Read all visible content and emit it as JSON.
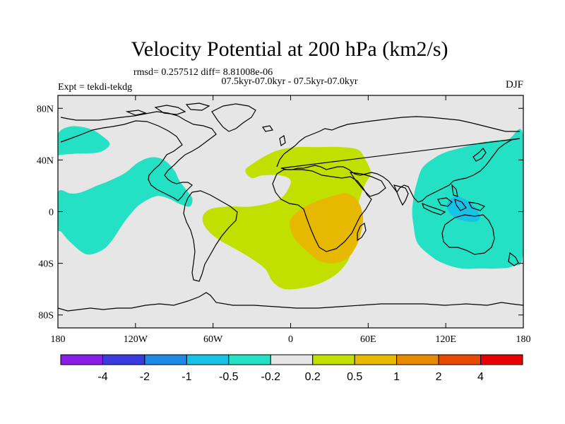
{
  "chart_data": {
    "type": "map-contour",
    "title": "Velocity Potential at 200 hPa (km2/s)",
    "subtitle_left": "rmsd= 0.257512 diff= 8.81008e-06",
    "subtitle_center": "07.5kyr-07.0kyr - 07.5kyr-07.0kyr",
    "expt_label": "Expt = tekdi-tekdg",
    "season_label": "DJF",
    "x_ticks": [
      {
        "value": -180,
        "label": "180"
      },
      {
        "value": -120,
        "label": "120W"
      },
      {
        "value": -60,
        "label": "60W"
      },
      {
        "value": 0,
        "label": "0"
      },
      {
        "value": 60,
        "label": "60E"
      },
      {
        "value": 120,
        "label": "120E"
      },
      {
        "value": 180,
        "label": "180"
      }
    ],
    "y_ticks": [
      {
        "value": 80,
        "label": "80N"
      },
      {
        "value": 40,
        "label": "40N"
      },
      {
        "value": 0,
        "label": "0"
      },
      {
        "value": -40,
        "label": "40S"
      },
      {
        "value": -80,
        "label": "80S"
      }
    ],
    "xlim": [
      -180,
      180
    ],
    "ylim": [
      -90,
      90
    ],
    "colorbar": {
      "colors": [
        "#8b1ee6",
        "#3a3adf",
        "#1f8ae6",
        "#18c2e6",
        "#24e0c4",
        "#e6e6e6",
        "#c2e000",
        "#e6b800",
        "#e68a00",
        "#e64a00",
        "#e60000"
      ],
      "labels": [
        "-4",
        "-2",
        "-1",
        "-0.5",
        "-0.2",
        "0.2",
        "0.5",
        "1",
        "2",
        "4"
      ]
    },
    "regions": [
      {
        "level": "-0.5 to -0.2",
        "color": "#24e0c4",
        "outline": [
          [
            -180,
            60
          ],
          [
            -170,
            66
          ],
          [
            -155,
            64
          ],
          [
            -145,
            58
          ],
          [
            -140,
            52
          ],
          [
            -148,
            46
          ],
          [
            -165,
            45
          ],
          [
            -178,
            44
          ],
          [
            -180,
            44
          ]
        ]
      },
      {
        "level": "-0.5 to -0.2",
        "color": "#24e0c4",
        "outline": [
          [
            -180,
            15
          ],
          [
            -170,
            14
          ],
          [
            -162,
            15
          ],
          [
            -150,
            20
          ],
          [
            -140,
            24
          ],
          [
            -128,
            30
          ],
          [
            -118,
            38
          ],
          [
            -108,
            42
          ],
          [
            -98,
            40
          ],
          [
            -90,
            32
          ],
          [
            -86,
            24
          ],
          [
            -80,
            16
          ],
          [
            -76,
            10
          ],
          [
            -78,
            4
          ],
          [
            -86,
            6
          ],
          [
            -94,
            10
          ],
          [
            -104,
            12
          ],
          [
            -116,
            6
          ],
          [
            -124,
            -2
          ],
          [
            -130,
            -10
          ],
          [
            -138,
            -22
          ],
          [
            -146,
            -30
          ],
          [
            -158,
            -33
          ],
          [
            -170,
            -24
          ],
          [
            -177,
            -16
          ],
          [
            -180,
            -12
          ]
        ]
      },
      {
        "level": "-0.5 to -0.2",
        "color": "#24e0c4",
        "outline": [
          [
            97,
            20
          ],
          [
            102,
            34
          ],
          [
            112,
            42
          ],
          [
            120,
            46
          ],
          [
            134,
            50
          ],
          [
            150,
            54
          ],
          [
            168,
            56
          ],
          [
            180,
            58
          ],
          [
            180,
            -30
          ],
          [
            172,
            -42
          ],
          [
            160,
            -44
          ],
          [
            148,
            -44
          ],
          [
            132,
            -44
          ],
          [
            118,
            -40
          ],
          [
            108,
            -34
          ],
          [
            98,
            -24
          ],
          [
            95,
            -10
          ],
          [
            94,
            0
          ],
          [
            95,
            10
          ]
        ]
      },
      {
        "level": "-1 to -0.5",
        "color": "#18c2e6",
        "outline": [
          [
            122,
            8
          ],
          [
            128,
            12
          ],
          [
            134,
            10
          ],
          [
            140,
            6
          ],
          [
            145,
            0
          ],
          [
            146,
            -6
          ],
          [
            140,
            -8
          ],
          [
            130,
            -6
          ],
          [
            124,
            -2
          ],
          [
            121,
            3
          ]
        ]
      },
      {
        "level": "0.2 to 0.5",
        "color": "#c2e000",
        "outline": [
          [
            -35,
            32
          ],
          [
            -28,
            38
          ],
          [
            -18,
            44
          ],
          [
            -8,
            48
          ],
          [
            5,
            50
          ],
          [
            20,
            50
          ],
          [
            38,
            50
          ],
          [
            52,
            48
          ],
          [
            58,
            40
          ],
          [
            62,
            30
          ],
          [
            58,
            22
          ],
          [
            54,
            12
          ],
          [
            50,
            -4
          ],
          [
            48,
            -20
          ],
          [
            46,
            -34
          ],
          [
            40,
            -44
          ],
          [
            30,
            -52
          ],
          [
            15,
            -58
          ],
          [
            -4,
            -60
          ],
          [
            -14,
            -54
          ],
          [
            -20,
            -44
          ],
          [
            -34,
            -34
          ],
          [
            -48,
            -26
          ],
          [
            -58,
            -20
          ],
          [
            -66,
            -12
          ],
          [
            -68,
            -4
          ],
          [
            -62,
            2
          ],
          [
            -48,
            4
          ],
          [
            -30,
            4
          ],
          [
            -12,
            8
          ],
          [
            -4,
            14
          ],
          [
            0,
            24
          ],
          [
            -8,
            28
          ],
          [
            -22,
            28
          ],
          [
            -30,
            26
          ]
        ]
      },
      {
        "level": "0.5 to 1",
        "color": "#e6b800",
        "outline": [
          [
            0,
            -6
          ],
          [
            8,
            2
          ],
          [
            20,
            8
          ],
          [
            32,
            12
          ],
          [
            44,
            14
          ],
          [
            52,
            8
          ],
          [
            56,
            -4
          ],
          [
            54,
            -18
          ],
          [
            50,
            -28
          ],
          [
            44,
            -36
          ],
          [
            34,
            -40
          ],
          [
            22,
            -38
          ],
          [
            12,
            -30
          ],
          [
            4,
            -22
          ],
          [
            0,
            -14
          ]
        ]
      }
    ]
  }
}
